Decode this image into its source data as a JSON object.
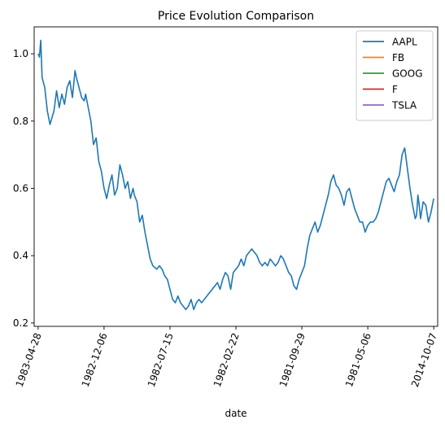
{
  "chart_data": {
    "type": "line",
    "title": "Price Evolution Comparison",
    "xlabel": "date",
    "ylabel": "",
    "ylim": [
      0.19,
      1.08
    ],
    "yticks": [
      0.2,
      0.4,
      0.6,
      0.8,
      1.0
    ],
    "ytick_labels": [
      "0.2",
      "0.4",
      "0.6",
      "0.8",
      "1.0"
    ],
    "x_range": [
      -3,
      303
    ],
    "xticks": [
      0,
      50,
      100,
      150,
      200,
      250,
      300
    ],
    "xtick_labels": [
      "1983-04-28",
      "1982-12-06",
      "1982-07-15",
      "1982-02-22",
      "1981-09-29",
      "1981-05-06",
      "2014-10-07"
    ],
    "legend_position": "top-right",
    "grid": false,
    "series": [
      {
        "name": "AAPL",
        "color": "#1f77b4",
        "points": [
          [
            0,
            1.0
          ],
          [
            1,
            0.99
          ],
          [
            2,
            1.04
          ],
          [
            3,
            0.93
          ],
          [
            5,
            0.9
          ],
          [
            7,
            0.83
          ],
          [
            9,
            0.79
          ],
          [
            12,
            0.83
          ],
          [
            14,
            0.89
          ],
          [
            16,
            0.84
          ],
          [
            18,
            0.88
          ],
          [
            20,
            0.85
          ],
          [
            22,
            0.9
          ],
          [
            24,
            0.92
          ],
          [
            26,
            0.87
          ],
          [
            28,
            0.95
          ],
          [
            29,
            0.93
          ],
          [
            31,
            0.9
          ],
          [
            33,
            0.87
          ],
          [
            35,
            0.86
          ],
          [
            36,
            0.88
          ],
          [
            38,
            0.84
          ],
          [
            40,
            0.8
          ],
          [
            42,
            0.73
          ],
          [
            44,
            0.75
          ],
          [
            46,
            0.68
          ],
          [
            48,
            0.65
          ],
          [
            50,
            0.6
          ],
          [
            52,
            0.57
          ],
          [
            54,
            0.61
          ],
          [
            56,
            0.64
          ],
          [
            58,
            0.58
          ],
          [
            60,
            0.6
          ],
          [
            62,
            0.67
          ],
          [
            64,
            0.64
          ],
          [
            66,
            0.6
          ],
          [
            68,
            0.62
          ],
          [
            70,
            0.57
          ],
          [
            72,
            0.6
          ],
          [
            73,
            0.58
          ],
          [
            75,
            0.56
          ],
          [
            77,
            0.5
          ],
          [
            79,
            0.52
          ],
          [
            81,
            0.47
          ],
          [
            83,
            0.43
          ],
          [
            85,
            0.39
          ],
          [
            87,
            0.37
          ],
          [
            90,
            0.36
          ],
          [
            92,
            0.37
          ],
          [
            94,
            0.36
          ],
          [
            96,
            0.34
          ],
          [
            98,
            0.33
          ],
          [
            100,
            0.3
          ],
          [
            102,
            0.27
          ],
          [
            104,
            0.26
          ],
          [
            106,
            0.28
          ],
          [
            108,
            0.26
          ],
          [
            110,
            0.25
          ],
          [
            112,
            0.24
          ],
          [
            114,
            0.25
          ],
          [
            116,
            0.27
          ],
          [
            118,
            0.24
          ],
          [
            120,
            0.26
          ],
          [
            122,
            0.27
          ],
          [
            124,
            0.26
          ],
          [
            126,
            0.27
          ],
          [
            128,
            0.28
          ],
          [
            130,
            0.29
          ],
          [
            132,
            0.3
          ],
          [
            134,
            0.31
          ],
          [
            136,
            0.32
          ],
          [
            138,
            0.3
          ],
          [
            140,
            0.33
          ],
          [
            142,
            0.35
          ],
          [
            144,
            0.34
          ],
          [
            146,
            0.3
          ],
          [
            148,
            0.35
          ],
          [
            150,
            0.36
          ],
          [
            152,
            0.37
          ],
          [
            154,
            0.39
          ],
          [
            156,
            0.37
          ],
          [
            158,
            0.4
          ],
          [
            160,
            0.41
          ],
          [
            162,
            0.42
          ],
          [
            164,
            0.41
          ],
          [
            166,
            0.4
          ],
          [
            168,
            0.38
          ],
          [
            170,
            0.37
          ],
          [
            172,
            0.38
          ],
          [
            174,
            0.37
          ],
          [
            176,
            0.39
          ],
          [
            178,
            0.38
          ],
          [
            180,
            0.37
          ],
          [
            182,
            0.38
          ],
          [
            184,
            0.4
          ],
          [
            186,
            0.39
          ],
          [
            188,
            0.37
          ],
          [
            190,
            0.35
          ],
          [
            192,
            0.34
          ],
          [
            194,
            0.31
          ],
          [
            196,
            0.3
          ],
          [
            198,
            0.33
          ],
          [
            200,
            0.35
          ],
          [
            202,
            0.37
          ],
          [
            204,
            0.42
          ],
          [
            206,
            0.46
          ],
          [
            208,
            0.48
          ],
          [
            210,
            0.5
          ],
          [
            212,
            0.47
          ],
          [
            214,
            0.49
          ],
          [
            216,
            0.52
          ],
          [
            218,
            0.55
          ],
          [
            220,
            0.58
          ],
          [
            222,
            0.62
          ],
          [
            224,
            0.64
          ],
          [
            226,
            0.61
          ],
          [
            228,
            0.6
          ],
          [
            230,
            0.58
          ],
          [
            232,
            0.55
          ],
          [
            234,
            0.59
          ],
          [
            236,
            0.6
          ],
          [
            238,
            0.57
          ],
          [
            240,
            0.54
          ],
          [
            242,
            0.52
          ],
          [
            244,
            0.5
          ],
          [
            246,
            0.5
          ],
          [
            248,
            0.47
          ],
          [
            250,
            0.49
          ],
          [
            252,
            0.5
          ],
          [
            254,
            0.5
          ],
          [
            256,
            0.51
          ],
          [
            258,
            0.53
          ],
          [
            260,
            0.56
          ],
          [
            262,
            0.59
          ],
          [
            264,
            0.62
          ],
          [
            266,
            0.63
          ],
          [
            268,
            0.61
          ],
          [
            270,
            0.59
          ],
          [
            272,
            0.62
          ],
          [
            274,
            0.64
          ],
          [
            276,
            0.7
          ],
          [
            278,
            0.72
          ],
          [
            280,
            0.66
          ],
          [
            282,
            0.6
          ],
          [
            284,
            0.55
          ],
          [
            286,
            0.51
          ],
          [
            287,
            0.52
          ],
          [
            288,
            0.58
          ],
          [
            289,
            0.55
          ],
          [
            290,
            0.51
          ],
          [
            292,
            0.56
          ],
          [
            294,
            0.55
          ],
          [
            296,
            0.5
          ],
          [
            298,
            0.53
          ],
          [
            300,
            0.57
          ]
        ]
      },
      {
        "name": "FB",
        "color": "#ff7f0e",
        "points": []
      },
      {
        "name": "GOOG",
        "color": "#2ca02c",
        "points": []
      },
      {
        "name": "F",
        "color": "#d62728",
        "points": []
      },
      {
        "name": "TSLA",
        "color": "#9467bd",
        "points": []
      }
    ]
  }
}
